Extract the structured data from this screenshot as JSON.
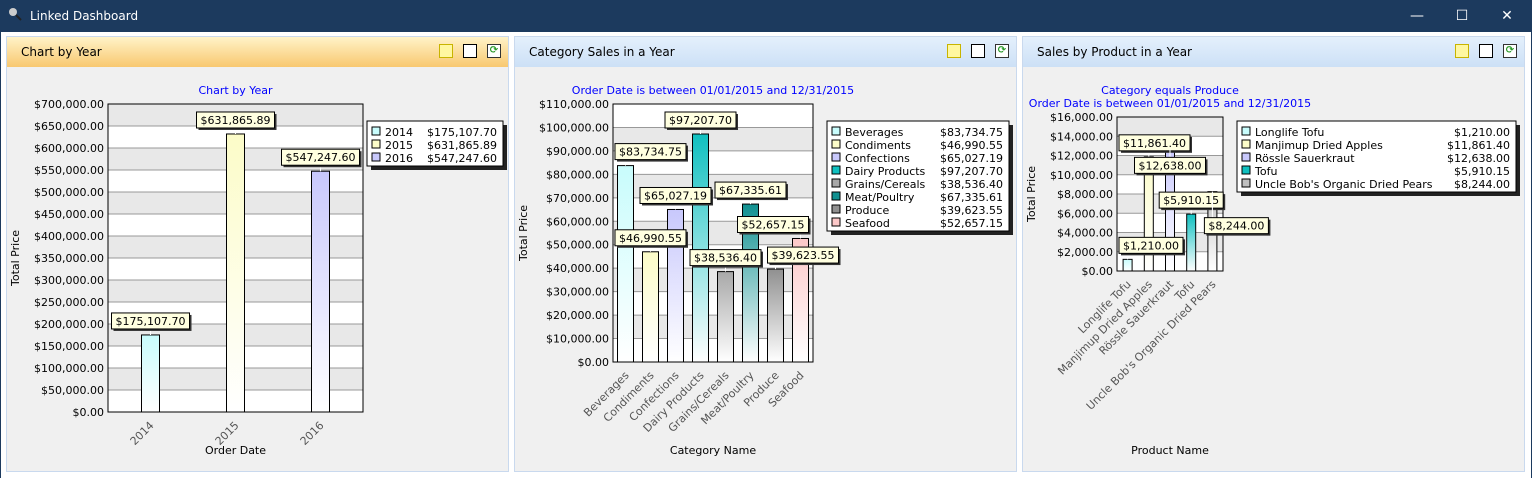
{
  "window": {
    "title": "Linked Dashboard",
    "minimize": "—",
    "maximize": "☐",
    "close": "✕"
  },
  "panels": [
    {
      "header": "Chart by Year",
      "chart_data": {
        "type": "bar",
        "title": [
          "Chart by Year"
        ],
        "xlabel": "Order Date",
        "ylabel": "Total Price",
        "ylim": [
          0,
          700000
        ],
        "ystep": 50000,
        "categories": [
          "2014",
          "2015",
          "2016"
        ],
        "values": [
          175107.7,
          631865.89,
          547247.6
        ],
        "labels": [
          "$175,107.70",
          "$631,865.89",
          "$547,247.60"
        ],
        "legend": [
          {
            "name": "2014",
            "value": "$175,107.70"
          },
          {
            "name": "2015",
            "value": "$631,865.89"
          },
          {
            "name": "2016",
            "value": "$547,247.60"
          }
        ],
        "colors": [
          "#c8fcfc",
          "#fcfcc8",
          "#c8c8fc"
        ],
        "legend_placement": "top-right",
        "grid": true
      }
    },
    {
      "header": "Category Sales in a Year",
      "chart_data": {
        "type": "bar",
        "title": [
          "Order Date is between 01/01/2015 and 12/31/2015"
        ],
        "xlabel": "Category Name",
        "ylabel": "Total Price",
        "ylim": [
          0,
          110000
        ],
        "ystep": 10000,
        "categories": [
          "Beverages",
          "Condiments",
          "Confections",
          "Dairy Products",
          "Grains/Cereals",
          "Meat/Poultry",
          "Produce",
          "Seafood"
        ],
        "values": [
          83734.75,
          46990.55,
          65027.19,
          97207.7,
          38536.4,
          67335.61,
          39623.55,
          52657.15
        ],
        "labels": [
          "$83,734.75",
          "$46,990.55",
          "$65,027.19",
          "$97,207.70",
          "$38,536.40",
          "$67,335.61",
          "$39,623.55",
          "$52,657.15"
        ],
        "legend": [
          {
            "name": "Beverages",
            "value": "$83,734.75"
          },
          {
            "name": "Condiments",
            "value": "$46,990.55"
          },
          {
            "name": "Confections",
            "value": "$65,027.19"
          },
          {
            "name": "Dairy Products",
            "value": "$97,207.70"
          },
          {
            "name": "Grains/Cereals",
            "value": "$38,536.40"
          },
          {
            "name": "Meat/Poultry",
            "value": "$67,335.61"
          },
          {
            "name": "Produce",
            "value": "$39,623.55"
          },
          {
            "name": "Seafood",
            "value": "$52,657.15"
          }
        ],
        "colors": [
          "#c8fcfc",
          "#fcfcc8",
          "#c8c8fc",
          "#10c0c0",
          "#a8a8a8",
          "#109090",
          "#909090",
          "#fcc8c8"
        ],
        "legend_placement": "top-right",
        "grid": true
      }
    },
    {
      "header": "Sales by Product in a Year",
      "chart_data": {
        "type": "bar",
        "title": [
          "Category equals Produce",
          "Order Date is between 01/01/2015 and 12/31/2015"
        ],
        "xlabel": "Product Name",
        "ylabel": "Total Price",
        "ylim": [
          0,
          16000
        ],
        "ystep": 2000,
        "categories": [
          "Longlife Tofu",
          "Manjimup Dried Apples",
          "Rössle Sauerkraut",
          "Tofu",
          "Uncle Bob's Organic Dried Pears"
        ],
        "values": [
          1210.0,
          11861.4,
          12638.0,
          5910.15,
          8244.0
        ],
        "labels": [
          "$1,210.00",
          "$11,861.40",
          "$12,638.00",
          "$5,910.15",
          "$8,244.00"
        ],
        "legend": [
          {
            "name": "Longlife Tofu",
            "value": "$1,210.00"
          },
          {
            "name": "Manjimup Dried Apples",
            "value": "$11,861.40"
          },
          {
            "name": "Rössle Sauerkraut",
            "value": "$12,638.00"
          },
          {
            "name": "Tofu",
            "value": "$5,910.15"
          },
          {
            "name": "Uncle Bob's Organic Dried Pears",
            "value": "$8,244.00"
          }
        ],
        "colors": [
          "#c8fcfc",
          "#fcfcc8",
          "#c8c8fc",
          "#10c0c0",
          "#c0c0c0"
        ],
        "legend_placement": "top-right",
        "grid": true
      }
    }
  ],
  "colors": {
    "titlebar": "#1c3a5e",
    "chart_title": "#0000ff"
  }
}
